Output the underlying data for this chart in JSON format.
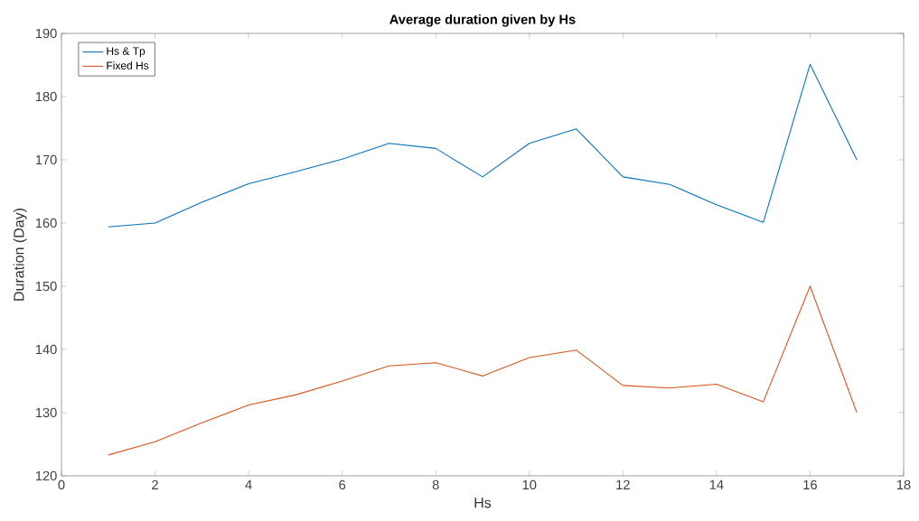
{
  "chart_data": {
    "type": "line",
    "title": "Average duration given by Hs",
    "xlabel": "Hs",
    "ylabel": "Duration (Day)",
    "x": [
      1,
      2,
      3,
      4,
      5,
      6,
      7,
      8,
      9,
      10,
      11,
      12,
      13,
      14,
      15,
      16,
      17
    ],
    "series": [
      {
        "name": "Hs & Tp",
        "color": "#0072bd",
        "values": [
          159.4,
          160,
          163.3,
          166.2,
          168.1,
          170.1,
          172.6,
          171.8,
          167.3,
          172.6,
          174.9,
          167.3,
          166.1,
          162.9,
          160.1,
          185.1,
          170
        ]
      },
      {
        "name": "Fixed Hs",
        "color": "#d95319",
        "values": [
          123.3,
          125.4,
          128.4,
          131.2,
          132.8,
          135,
          137.4,
          137.9,
          135.8,
          138.7,
          139.9,
          134.3,
          133.9,
          134.5,
          131.7,
          150,
          130
        ]
      }
    ],
    "xlim": [
      0,
      18
    ],
    "ylim": [
      120,
      190
    ],
    "xticks": [
      0,
      2,
      4,
      6,
      8,
      10,
      12,
      14,
      16,
      18
    ],
    "yticks": [
      120,
      130,
      140,
      150,
      160,
      170,
      180,
      190
    ],
    "grid": false,
    "legend": "top left",
    "marker": "none",
    "line_style": "solid"
  }
}
